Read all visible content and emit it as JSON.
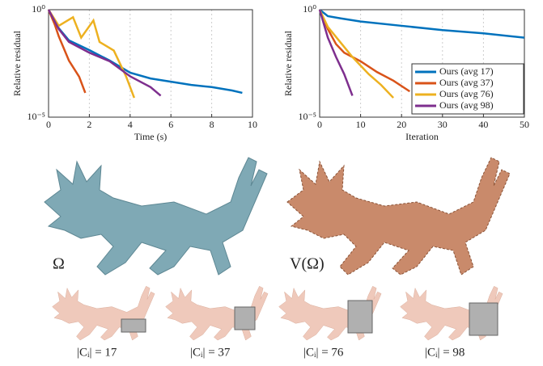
{
  "chart_data": [
    {
      "type": "line",
      "xlabel": "Time (s)",
      "ylabel": "Relative residual",
      "xlim": [
        0,
        10
      ],
      "xticks": [
        0,
        2,
        4,
        6,
        8,
        10
      ],
      "ylim": [
        1e-05,
        1
      ],
      "yticks": [
        {
          "value": 1e-05,
          "label": "10⁻⁵"
        },
        {
          "value": 1,
          "label": "10⁰"
        }
      ],
      "log_y": true,
      "grid": true,
      "series": [
        {
          "color": "#0072bd",
          "x": [
            0,
            0.5,
            1,
            2,
            3,
            4,
            5,
            6,
            7,
            8,
            9,
            9.5
          ],
          "values": [
            1,
            0.138,
            0.0372,
            0.0132,
            0.00427,
            0.00117,
            0.000631,
            0.000447,
            0.000316,
            0.000251,
            0.000174,
            0.000135
          ]
        },
        {
          "color": "#d95319",
          "x": [
            0,
            0.3,
            0.5,
            1,
            1.5,
            1.8
          ],
          "values": [
            1,
            0.209,
            0.0575,
            0.00427,
            0.000759,
            0.000135
          ]
        },
        {
          "color": "#edb120",
          "x": [
            0,
            0.5,
            1.2,
            1.6,
            2.2,
            2.5,
            3.2,
            3.8,
            4.2
          ],
          "values": [
            1,
            0.178,
            0.447,
            0.0501,
            0.316,
            0.0316,
            0.0126,
            0.000794,
            7.94e-05
          ]
        },
        {
          "color": "#7e2f8e",
          "x": [
            0,
            0.5,
            1,
            2,
            3,
            4,
            5,
            5.5
          ],
          "values": [
            1,
            0.126,
            0.0316,
            0.01,
            0.00398,
            0.000794,
            0.000251,
            0.0001
          ]
        }
      ]
    },
    {
      "type": "line",
      "xlabel": "Iteration",
      "ylabel": "Relative residual",
      "xlim": [
        0,
        50
      ],
      "xticks": [
        0,
        10,
        20,
        30,
        40,
        50
      ],
      "ylim": [
        1e-05,
        1
      ],
      "yticks": [
        {
          "value": 1e-05,
          "label": "10⁻⁵"
        },
        {
          "value": 1,
          "label": "10⁰"
        }
      ],
      "log_y": true,
      "grid": true,
      "legend": "lower right",
      "series": [
        {
          "name": "Ours (avg 17)",
          "color": "#0072bd",
          "x": [
            0,
            2,
            5,
            10,
            20,
            30,
            40,
            50
          ],
          "values": [
            1,
            0.5,
            0.398,
            0.282,
            0.178,
            0.112,
            0.0794,
            0.0501
          ]
        },
        {
          "name": "Ours (avg 37)",
          "color": "#d95319",
          "x": [
            0,
            2,
            4,
            6,
            10,
            14,
            18,
            22
          ],
          "values": [
            1,
            0.126,
            0.0251,
            0.01,
            0.00398,
            0.00126,
            0.000501,
            0.000158
          ]
        },
        {
          "name": "Ours (avg 76)",
          "color": "#edb120",
          "x": [
            0,
            2,
            5,
            8,
            12,
            15,
            18
          ],
          "values": [
            1,
            0.158,
            0.0316,
            0.00631,
            0.001,
            0.000316,
            7.94e-05
          ]
        },
        {
          "name": "Ours (avg 98)",
          "color": "#7e2f8e",
          "x": [
            0,
            2,
            4,
            6,
            8
          ],
          "values": [
            1,
            0.0501,
            0.00631,
            0.001,
            0.0001
          ]
        }
      ]
    }
  ],
  "labels": {
    "shape": "Ω",
    "voxelized": "V(Ω)",
    "clusters": [
      "|Cᵢ| = 17",
      "|Cᵢ| = 37",
      "|Cᵢ| = 76",
      "|Cᵢ| = 98"
    ]
  }
}
